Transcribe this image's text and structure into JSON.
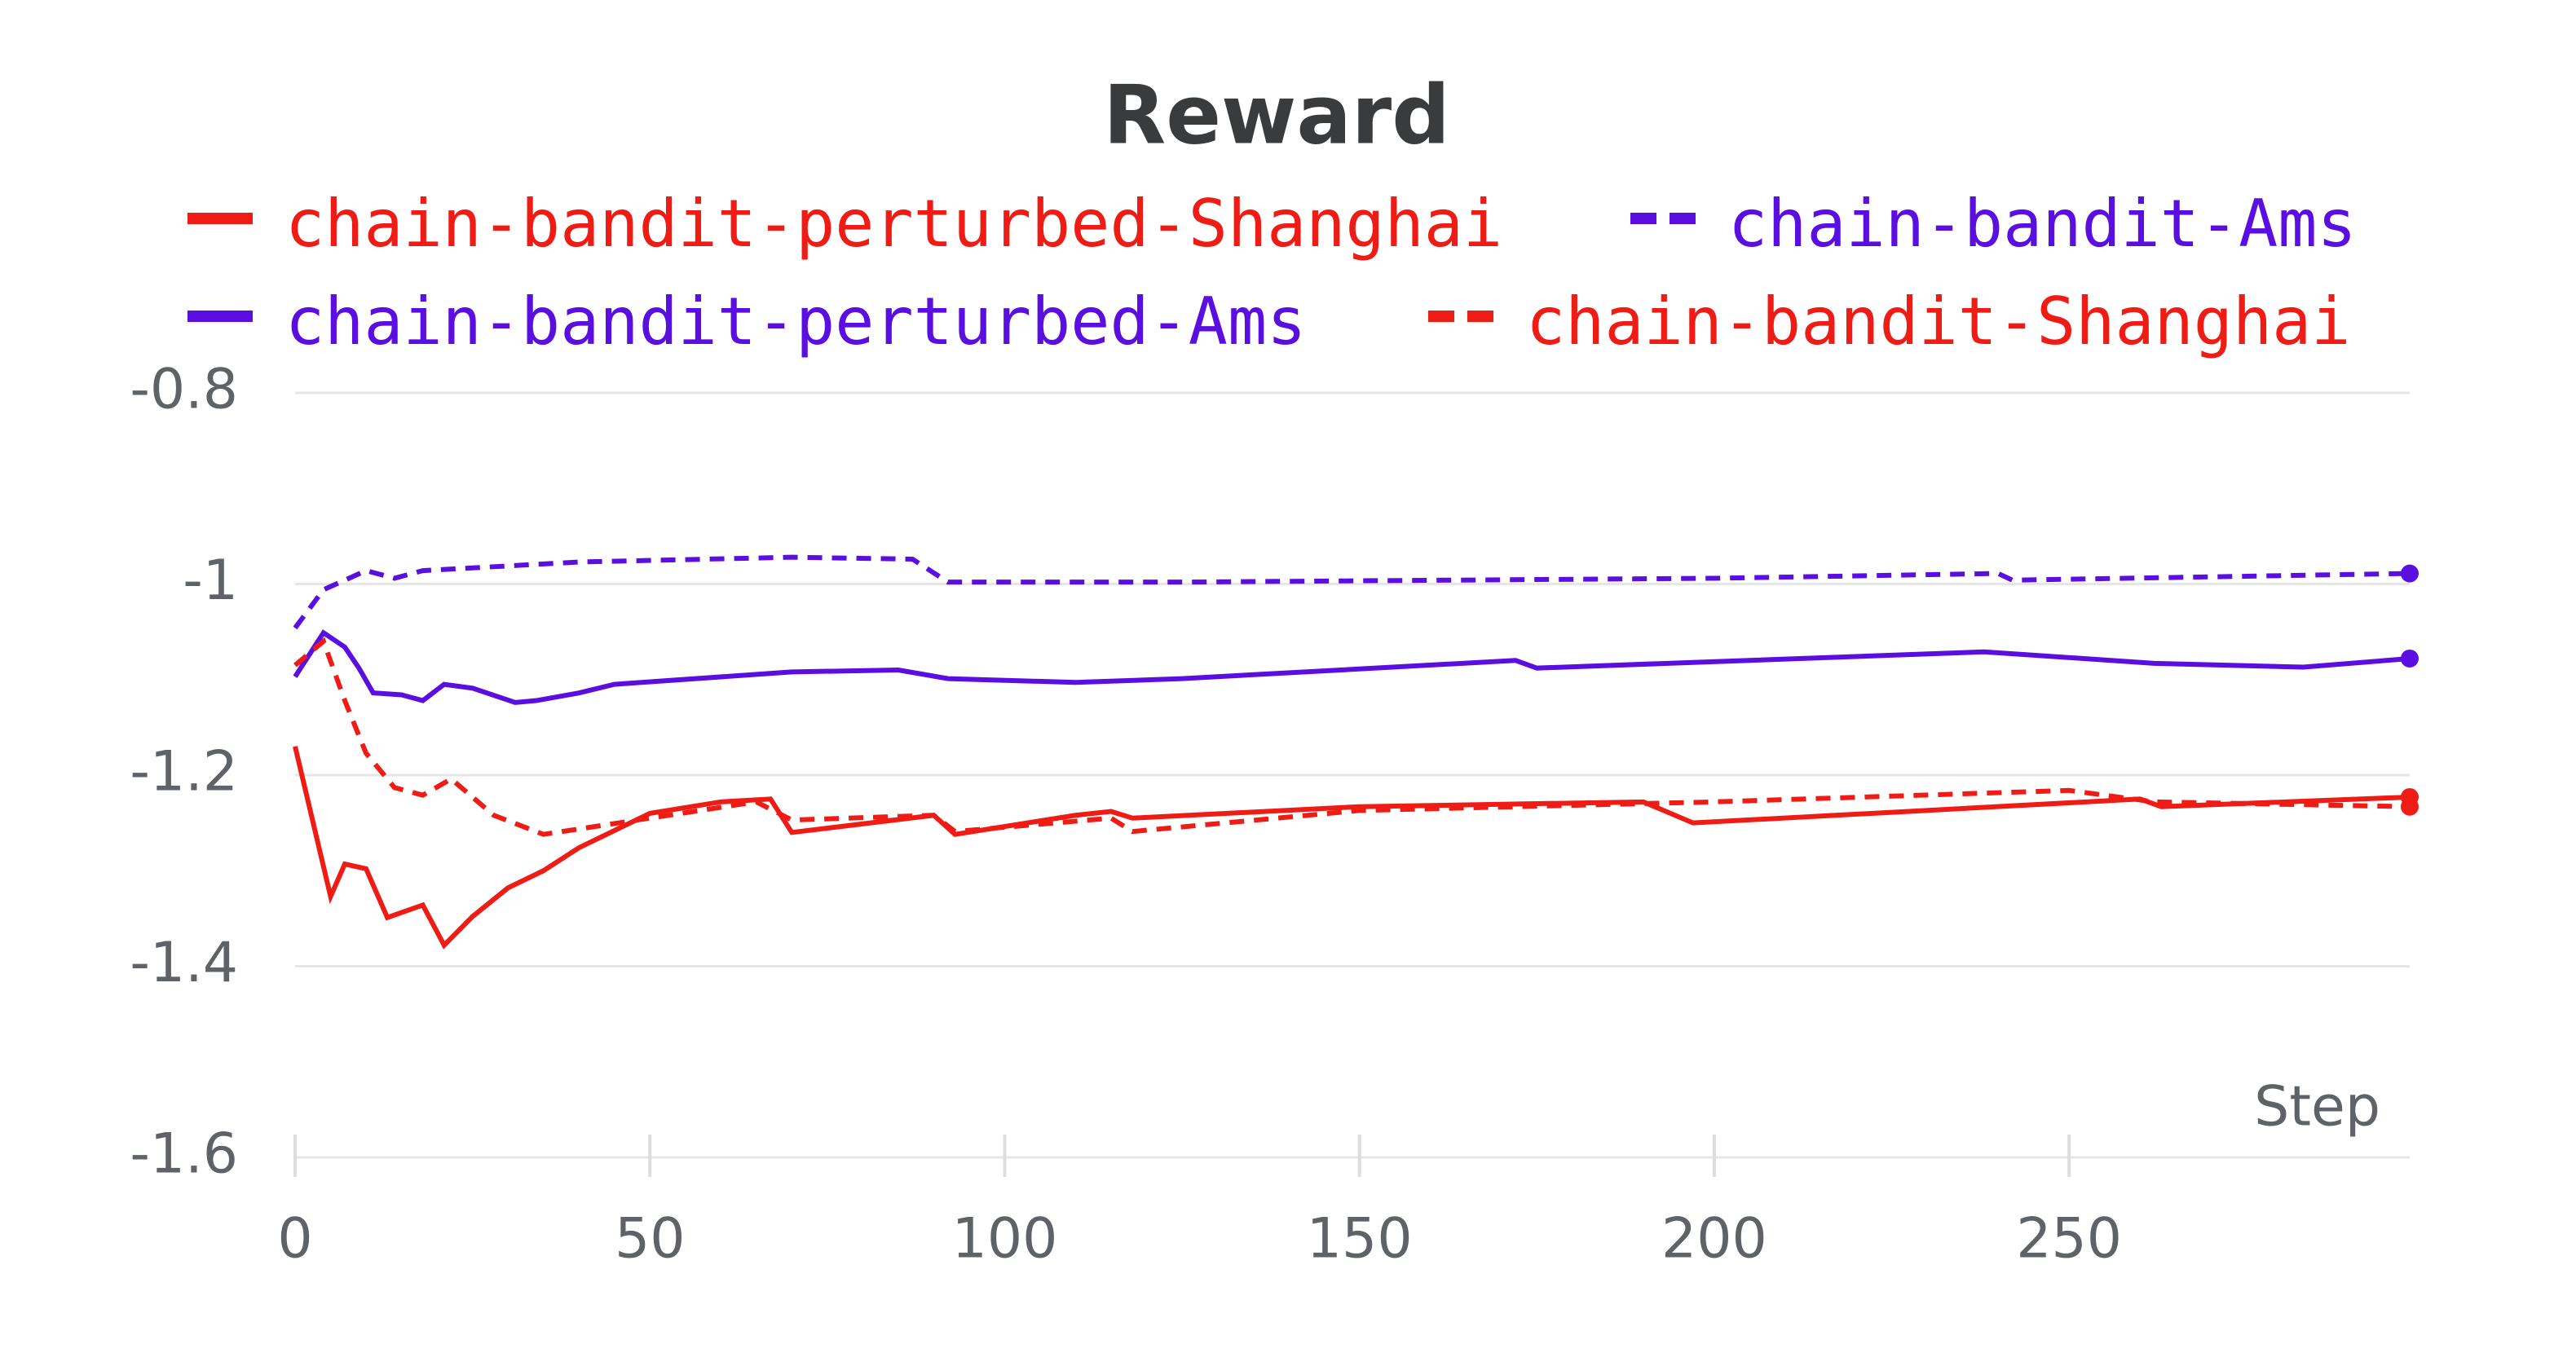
{
  "chart_data": {
    "type": "line",
    "title": "Reward",
    "x_label": "Step",
    "legend": "top",
    "xlim": [
      0,
      298
    ],
    "xticks": [
      0,
      50,
      100,
      150,
      200,
      250
    ],
    "ylim": [
      -1.6,
      -0.8
    ],
    "yticks": [
      -0.8,
      -1,
      -1.2,
      -1.4,
      -1.6
    ],
    "grid": true,
    "series": [
      {
        "name": "chain-bandit-perturbed-Shanghai",
        "color": "#ee1c14",
        "line_style": "solid",
        "x": [
          0,
          5,
          7,
          10,
          13,
          18,
          21,
          25,
          30,
          35,
          40,
          50,
          60,
          67,
          70,
          90,
          93,
          110,
          115,
          118,
          150,
          190,
          197,
          260,
          263,
          298
        ],
        "values": [
          -1.17,
          -1.327,
          -1.293,
          -1.298,
          -1.349,
          -1.336,
          -1.378,
          -1.348,
          -1.318,
          -1.3,
          -1.276,
          -1.24,
          -1.228,
          -1.225,
          -1.26,
          -1.242,
          -1.262,
          -1.242,
          -1.238,
          -1.245,
          -1.233,
          -1.228,
          -1.25,
          -1.225,
          -1.233,
          -1.223
        ]
      },
      {
        "name": "chain-bandit-Ams",
        "color": "#5a0ee0",
        "line_style": "dashed",
        "x": [
          0,
          4,
          10,
          14,
          18,
          40,
          70,
          87,
          92,
          125,
          200,
          240,
          242,
          298
        ],
        "values": [
          -1.046,
          -1.006,
          -0.986,
          -0.994,
          -0.986,
          -0.977,
          -0.972,
          -0.974,
          -0.998,
          -0.998,
          -0.994,
          -0.989,
          -0.996,
          -0.989
        ]
      },
      {
        "name": "chain-bandit-perturbed-Ams",
        "color": "#5a0ee0",
        "line_style": "solid",
        "x": [
          0,
          4,
          7,
          9,
          11,
          15,
          18,
          21,
          25,
          31,
          34,
          40,
          45,
          70,
          85,
          92,
          110,
          125,
          172,
          175,
          238,
          262,
          283,
          298
        ],
        "values": [
          -1.097,
          -1.051,
          -1.066,
          -1.088,
          -1.114,
          -1.116,
          -1.122,
          -1.105,
          -1.109,
          -1.124,
          -1.122,
          -1.114,
          -1.105,
          -1.092,
          -1.09,
          -1.099,
          -1.103,
          -1.099,
          -1.08,
          -1.088,
          -1.071,
          -1.083,
          -1.087,
          -1.078
        ]
      },
      {
        "name": "chain-bandit-Shanghai",
        "color": "#ee1c14",
        "line_style": "dashed",
        "x": [
          0,
          4,
          7,
          10,
          14,
          18,
          22,
          28,
          35,
          50,
          65,
          70,
          90,
          93,
          115,
          118,
          150,
          200,
          250,
          262,
          298
        ],
        "values": [
          -1.085,
          -1.06,
          -1.122,
          -1.177,
          -1.213,
          -1.221,
          -1.204,
          -1.242,
          -1.262,
          -1.245,
          -1.228,
          -1.247,
          -1.242,
          -1.259,
          -1.245,
          -1.259,
          -1.237,
          -1.228,
          -1.216,
          -1.228,
          -1.233
        ]
      }
    ]
  }
}
